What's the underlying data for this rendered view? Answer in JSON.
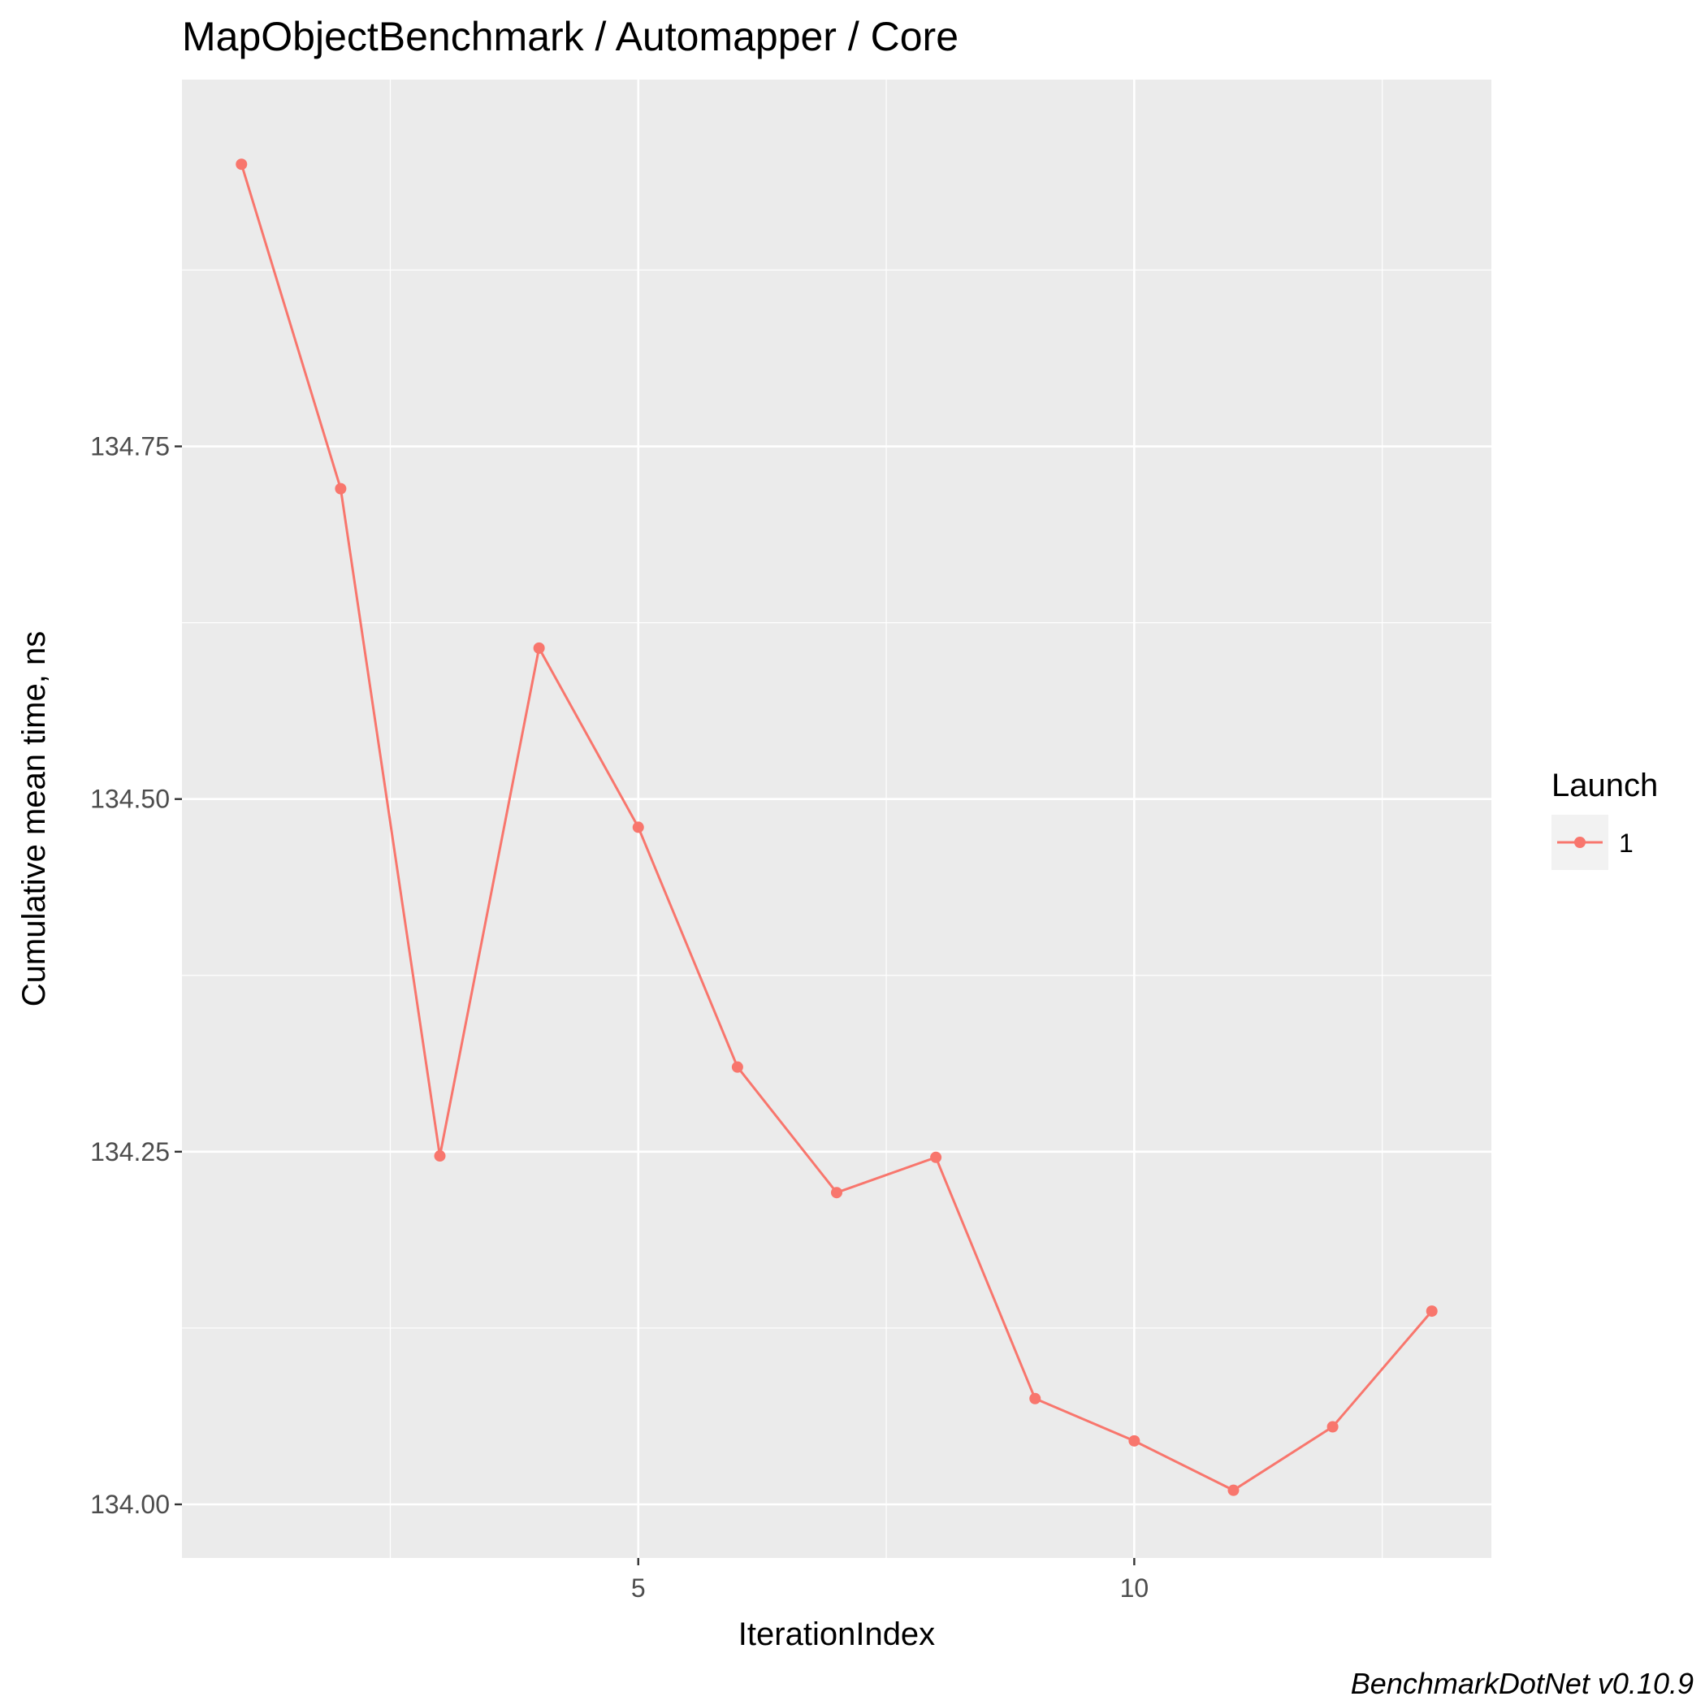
{
  "chart_data": {
    "type": "line",
    "title": "MapObjectBenchmark / Automapper / Core",
    "xlabel": "IterationIndex",
    "ylabel": "Cumulative mean time, ns",
    "caption": "BenchmarkDotNet v0.10.9",
    "x": [
      1,
      2,
      3,
      4,
      5,
      6,
      7,
      8,
      9,
      10,
      11,
      12,
      13
    ],
    "series": [
      {
        "name": "1",
        "values": [
          134.95,
          134.72,
          134.247,
          134.607,
          134.48,
          134.31,
          134.221,
          134.246,
          134.075,
          134.045,
          134.01,
          134.055,
          134.137
        ]
      }
    ],
    "xlim": [
      0.4,
      13.6
    ],
    "ylim": [
      133.962,
      135.01
    ],
    "x_ticks": [
      "5",
      "10"
    ],
    "x_tick_values": [
      5,
      10
    ],
    "x_minor_ticks": [
      2.5,
      7.5,
      12.5
    ],
    "y_ticks": [
      "134.00",
      "134.25",
      "134.50",
      "134.75"
    ],
    "y_tick_values": [
      134.0,
      134.25,
      134.5,
      134.75
    ],
    "y_minor_ticks": [
      134.125,
      134.375,
      134.625,
      134.875
    ],
    "grid": true,
    "legend": {
      "title": "Launch",
      "position": "right"
    },
    "colors": {
      "series": "#F8766D",
      "panel": "#EBEBEB",
      "grid": "#FFFFFF"
    }
  }
}
